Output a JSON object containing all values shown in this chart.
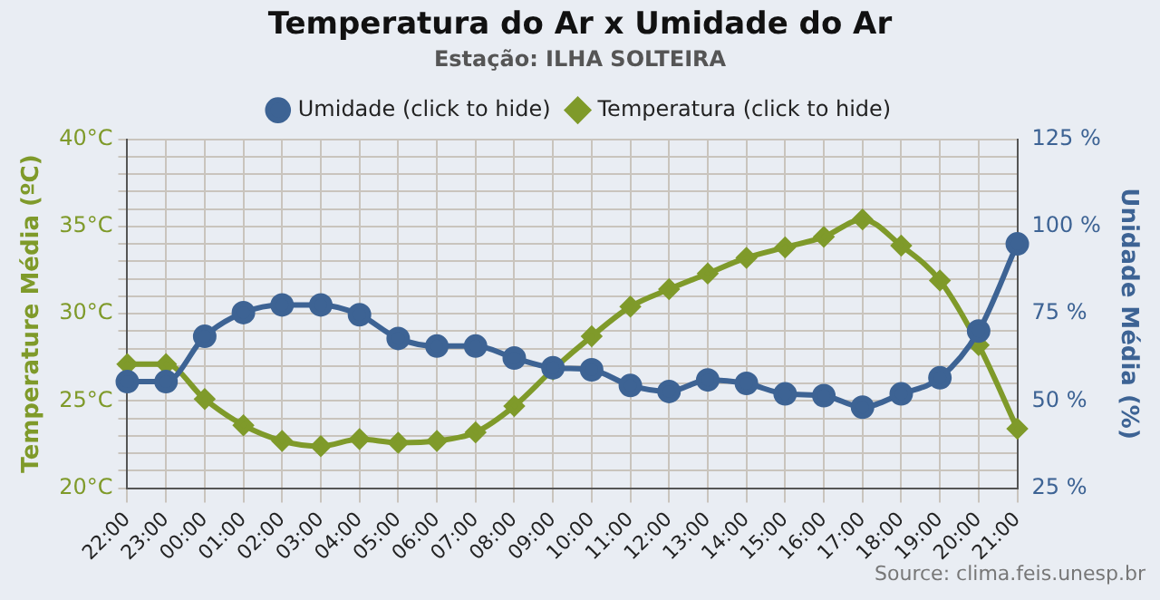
{
  "chart_data": {
    "type": "line",
    "title": "Temperatura do Ar x Umidade do Ar",
    "subtitle": "Estação: ILHA SOLTEIRA",
    "categories": [
      "22:00",
      "23:00",
      "00:00",
      "01:00",
      "02:00",
      "03:00",
      "04:00",
      "05:00",
      "06:00",
      "07:00",
      "08:00",
      "09:00",
      "10:00",
      "11:00",
      "12:00",
      "13:00",
      "14:00",
      "15:00",
      "16:00",
      "17:00",
      "18:00",
      "19:00",
      "20:00",
      "21:00"
    ],
    "series": [
      {
        "name": "Umidade (click to hide)",
        "color": "#3d6394",
        "axis": "y2",
        "marker": "circle",
        "values": [
          55.5,
          55.5,
          68.5,
          75.3,
          77.5,
          77.5,
          74.7,
          67.9,
          65.7,
          65.7,
          62.3,
          59.5,
          58.9,
          54.4,
          52.7,
          56,
          55,
          52,
          51.5,
          48.2,
          52,
          56.6,
          70,
          95
        ]
      },
      {
        "name": "Temperatura (click to hide)",
        "color": "#7f9a2a",
        "marker": "diamond",
        "values": [
          27.1,
          27.1,
          25.1,
          23.6,
          22.7,
          22.4,
          22.8,
          22.6,
          22.7,
          23.2,
          24.7,
          26.8,
          28.7,
          30.4,
          31.4,
          32.3,
          33.2,
          33.8,
          34.4,
          35.4,
          33.9,
          31.9,
          28.2,
          23.4
        ]
      }
    ],
    "ylabel": "Temperature Média (ºC)",
    "y2label": "Unidade Média (%)",
    "ylim": [
      20,
      40
    ],
    "yticks": [
      {
        "value": 20,
        "label": "20°C"
      },
      {
        "value": 21,
        "label": null
      },
      {
        "value": 22,
        "label": null
      },
      {
        "value": 23,
        "label": null
      },
      {
        "value": 24,
        "label": null
      },
      {
        "value": 25,
        "label": "25°C"
      },
      {
        "value": 26,
        "label": null
      },
      {
        "value": 27,
        "label": null
      },
      {
        "value": 28,
        "label": null
      },
      {
        "value": 29,
        "label": null
      },
      {
        "value": 30,
        "label": "30°C"
      },
      {
        "value": 31,
        "label": null
      },
      {
        "value": 32,
        "label": null
      },
      {
        "value": 33,
        "label": null
      },
      {
        "value": 34,
        "label": null
      },
      {
        "value": 35,
        "label": "35°C"
      },
      {
        "value": 36,
        "label": null
      },
      {
        "value": 37,
        "label": null
      },
      {
        "value": 38,
        "label": null
      },
      {
        "value": 39,
        "label": null
      },
      {
        "value": 40,
        "label": "40°C"
      }
    ],
    "y2lim": [
      25,
      125
    ],
    "y2ticks": [
      {
        "value": 25,
        "label": "25 %"
      },
      {
        "value": 50,
        "label": "50 %"
      },
      {
        "value": 75,
        "label": "75 %"
      },
      {
        "value": 100,
        "label": "100 %"
      },
      {
        "value": 125,
        "label": "125 %"
      }
    ],
    "grid": true,
    "legend": "top",
    "line_style": "solid",
    "annotations": [
      "Source: clima.feis.unesp.br"
    ]
  }
}
